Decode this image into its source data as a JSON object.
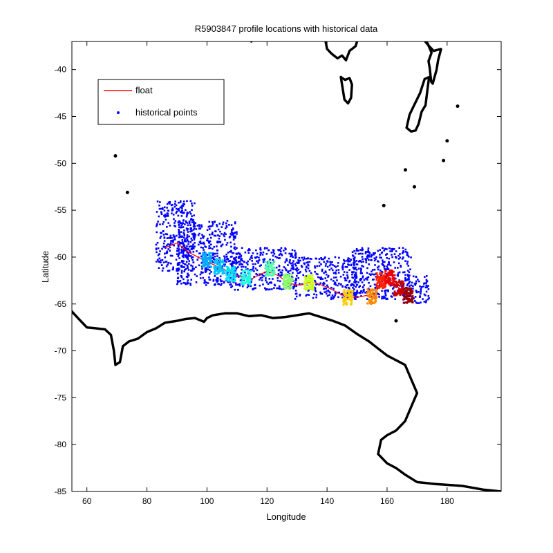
{
  "chart_data": {
    "type": "scatter",
    "title": "R5903847 profile locations with historical data",
    "xlabel": "Longitude",
    "ylabel": "Latitude",
    "xlim": [
      55,
      198
    ],
    "ylim": [
      -85,
      -37
    ],
    "xticks": [
      60,
      80,
      100,
      120,
      140,
      160,
      180
    ],
    "yticks": [
      -85,
      -80,
      -75,
      -70,
      -65,
      -60,
      -55,
      -50,
      -45,
      -40
    ],
    "grid": false,
    "legend": {
      "placement": "top-left",
      "entries": [
        {
          "label": "float",
          "color": "#ff0000",
          "marker": "line"
        },
        {
          "label": "historical points",
          "color": "#0000ff",
          "marker": "dot"
        }
      ]
    },
    "historical_region": [
      {
        "lon_min": 83,
        "lon_max": 96,
        "lat_min": -61.5,
        "lat_max": -54
      },
      {
        "lon_min": 90,
        "lon_max": 110,
        "lat_min": -63,
        "lat_max": -56
      },
      {
        "lon_min": 108,
        "lon_max": 130,
        "lat_min": -63.5,
        "lat_max": -59
      },
      {
        "lon_min": 128,
        "lon_max": 150,
        "lat_min": -64.5,
        "lat_max": -60
      },
      {
        "lon_min": 148,
        "lon_max": 168,
        "lat_min": -64.5,
        "lat_max": -59
      },
      {
        "lon_min": 165,
        "lon_max": 174,
        "lat_min": -65,
        "lat_max": -62
      }
    ],
    "float_track": [
      {
        "lon": 86,
        "lat": -59
      },
      {
        "lon": 90,
        "lat": -58.5
      },
      {
        "lon": 94,
        "lat": -59.5
      },
      {
        "lon": 100,
        "lat": -60.5
      },
      {
        "lon": 105,
        "lat": -61.2
      },
      {
        "lon": 110,
        "lat": -62
      },
      {
        "lon": 115,
        "lat": -62.3
      },
      {
        "lon": 120,
        "lat": -61.5
      },
      {
        "lon": 124,
        "lat": -62
      },
      {
        "lon": 127,
        "lat": -62.8
      },
      {
        "lon": 131,
        "lat": -63
      },
      {
        "lon": 135,
        "lat": -62.6
      },
      {
        "lon": 140,
        "lat": -63.2
      },
      {
        "lon": 146,
        "lat": -64.2
      },
      {
        "lon": 150,
        "lat": -64.3
      },
      {
        "lon": 153,
        "lat": -64.1
      },
      {
        "lon": 156,
        "lat": -64
      },
      {
        "lon": 157,
        "lat": -62.5
      },
      {
        "lon": 160,
        "lat": -62
      },
      {
        "lon": 163,
        "lat": -63
      },
      {
        "lon": 166,
        "lat": -64
      },
      {
        "lon": 168,
        "lat": -64.2
      }
    ],
    "profile_clusters": [
      {
        "lon": 100,
        "lat": -60.3,
        "color": "#00aaff"
      },
      {
        "lon": 104,
        "lat": -61,
        "color": "#00c4ff"
      },
      {
        "lon": 108,
        "lat": -61.8,
        "color": "#00e0ff"
      },
      {
        "lon": 113,
        "lat": -62.2,
        "color": "#22ffdd"
      },
      {
        "lon": 121,
        "lat": -61.2,
        "color": "#55ffaa"
      },
      {
        "lon": 127,
        "lat": -62.6,
        "color": "#88ff66"
      },
      {
        "lon": 134,
        "lat": -62.7,
        "color": "#ccff22"
      },
      {
        "lon": 147,
        "lat": -64.3,
        "color": "#ffcc00"
      },
      {
        "lon": 155,
        "lat": -64.2,
        "color": "#ff8800"
      },
      {
        "lon": 158,
        "lat": -62.5,
        "color": "#ff2200"
      },
      {
        "lon": 161,
        "lat": -62.2,
        "color": "#ee0000"
      },
      {
        "lon": 164,
        "lat": -63.3,
        "color": "#cc0000"
      },
      {
        "lon": 167,
        "lat": -64.1,
        "color": "#990000"
      }
    ],
    "coastlines": [
      {
        "name": "antarctica",
        "points": [
          [
            55,
            -65.8
          ],
          [
            57,
            -66.5
          ],
          [
            60,
            -67.5
          ],
          [
            63,
            -67.6
          ],
          [
            66,
            -67.7
          ],
          [
            68,
            -68.3
          ],
          [
            69,
            -70
          ],
          [
            69.5,
            -71.5
          ],
          [
            71,
            -71.2
          ],
          [
            72,
            -69.5
          ],
          [
            74,
            -69
          ],
          [
            77,
            -68.7
          ],
          [
            80,
            -68
          ],
          [
            83,
            -67.6
          ],
          [
            86,
            -67
          ],
          [
            90,
            -66.8
          ],
          [
            93,
            -66.6
          ],
          [
            96,
            -66.5
          ],
          [
            99,
            -66.9
          ],
          [
            100,
            -66.5
          ],
          [
            102,
            -66.2
          ],
          [
            106,
            -66
          ],
          [
            110,
            -66
          ],
          [
            114,
            -66.3
          ],
          [
            118,
            -66.2
          ],
          [
            122,
            -66.5
          ],
          [
            126,
            -66.4
          ],
          [
            130,
            -66.2
          ],
          [
            134,
            -66
          ],
          [
            138,
            -66.4
          ],
          [
            142,
            -66.8
          ],
          [
            146,
            -67.3
          ],
          [
            150,
            -68.2
          ],
          [
            154,
            -69
          ],
          [
            158,
            -70
          ],
          [
            160,
            -70.5
          ],
          [
            163,
            -71
          ],
          [
            166,
            -71.5
          ],
          [
            168,
            -73
          ],
          [
            170,
            -74.5
          ],
          [
            168,
            -76
          ],
          [
            166,
            -77.5
          ],
          [
            163,
            -78.5
          ],
          [
            160,
            -79
          ],
          [
            158,
            -79.5
          ],
          [
            157,
            -81
          ],
          [
            160,
            -82
          ],
          [
            163,
            -82.5
          ],
          [
            166,
            -83.2
          ],
          [
            170,
            -84
          ],
          [
            176,
            -84.2
          ],
          [
            185,
            -84.4
          ],
          [
            192,
            -84.8
          ],
          [
            198,
            -85
          ]
        ]
      },
      {
        "name": "south-island",
        "points": [
          [
            166.5,
            -46.2
          ],
          [
            167.5,
            -44.8
          ],
          [
            169,
            -43.8
          ],
          [
            171,
            -42.5
          ],
          [
            172.5,
            -41
          ],
          [
            174,
            -40.8
          ],
          [
            173.5,
            -42
          ],
          [
            172.8,
            -43.8
          ],
          [
            171.5,
            -44.5
          ],
          [
            170.5,
            -45.8
          ],
          [
            169.5,
            -46.5
          ],
          [
            168,
            -46.6
          ],
          [
            166.5,
            -46.2
          ]
        ]
      },
      {
        "name": "north-island",
        "points": [
          [
            172.7,
            -37
          ],
          [
            174,
            -37.5
          ],
          [
            175.5,
            -38
          ],
          [
            178,
            -37.8
          ],
          [
            177,
            -39
          ],
          [
            176.5,
            -40
          ],
          [
            175.2,
            -41.5
          ],
          [
            174.7,
            -41.3
          ],
          [
            174.2,
            -39.8
          ],
          [
            173.8,
            -39.1
          ],
          [
            174.8,
            -38.2
          ],
          [
            173.5,
            -37.2
          ],
          [
            172.7,
            -37
          ]
        ]
      },
      {
        "name": "tasmania",
        "points": [
          [
            144.6,
            -40.8
          ],
          [
            146,
            -41.1
          ],
          [
            147.5,
            -40.9
          ],
          [
            148.3,
            -41.6
          ],
          [
            148,
            -43
          ],
          [
            147,
            -43.6
          ],
          [
            145.8,
            -43.2
          ],
          [
            145.2,
            -42
          ],
          [
            144.6,
            -40.8
          ]
        ]
      },
      {
        "name": "australia-south-coast",
        "points": [
          [
            139.5,
            -37
          ],
          [
            140,
            -37.8
          ],
          [
            141.5,
            -38.3
          ],
          [
            143.5,
            -38.8
          ],
          [
            145,
            -38.5
          ],
          [
            146.3,
            -39
          ],
          [
            147.5,
            -38
          ],
          [
            149.5,
            -37.5
          ],
          [
            150,
            -37
          ]
        ]
      },
      {
        "name": "australia-west-coast",
        "points": [
          [
            114.8,
            -37
          ],
          [
            115.2,
            -36.5
          ]
        ]
      }
    ],
    "islands": [
      {
        "name": "kerguelen",
        "lon": 69.5,
        "lat": -49.2
      },
      {
        "name": "heard",
        "lon": 73.5,
        "lat": -53.1
      },
      {
        "name": "macquarie",
        "lon": 158.9,
        "lat": -54.5
      },
      {
        "name": "auckland",
        "lon": 166.1,
        "lat": -50.7
      },
      {
        "name": "campbell",
        "lon": 169.1,
        "lat": -52.5
      },
      {
        "name": "antipodes",
        "lon": 178.8,
        "lat": -49.7
      },
      {
        "name": "chatham",
        "lon": 183.5,
        "lat": -43.9
      },
      {
        "name": "balleny",
        "lon": 163,
        "lat": -66.8
      },
      {
        "name": "scott",
        "lon": 180,
        "lat": -47.6
      }
    ]
  }
}
